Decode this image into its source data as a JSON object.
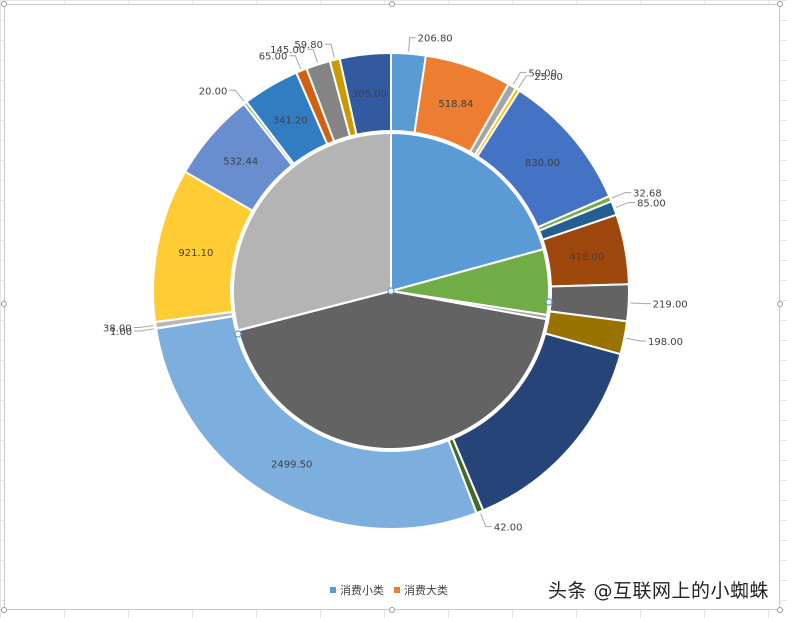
{
  "chart_data": {
    "type": "doughnut-pie",
    "legend": [
      {
        "name": "消费小类",
        "color": "#5b9bd5"
      },
      {
        "name": "消费大类",
        "color": "#ed7d31"
      }
    ],
    "legend_position": "bottom",
    "series": [
      {
        "name": "消费小类",
        "ring": "outer",
        "values": [
          206.8,
          518.84,
          50.0,
          25.0,
          830.0,
          32.68,
          85.0,
          418.0,
          219.0,
          198.0,
          1270.0,
          42.0,
          2499.5,
          1.0,
          38.0,
          921.1,
          532.44,
          20.0,
          341.2,
          65.0,
          145.0,
          59.8,
          305.0
        ],
        "labels": [
          "206.80",
          "518.84",
          "50.00",
          "25.00",
          "830.00",
          "32.68",
          "85.00",
          "418.00",
          "219.00",
          "198.00",
          "",
          "42.00",
          "2499.50",
          "1.00",
          "38.00",
          "921.10",
          "532.44",
          "20.00",
          "341.20",
          "65.00",
          "145.00",
          "59.80",
          "305.00"
        ],
        "colors": [
          "#5b9bd5",
          "#ed7d31",
          "#a5a5a5",
          "#ffc000",
          "#4472c4",
          "#70ad47",
          "#255e91",
          "#9e480e",
          "#636363",
          "#997300",
          "#264478",
          "#43682b",
          "#7cafdd",
          "#f1975a",
          "#b7b7b7",
          "#ffcd33",
          "#698ed0",
          "#8cc168",
          "#327dc2",
          "#d26012",
          "#848484",
          "#cc9a00",
          "#335aa1"
        ]
      },
      {
        "name": "消费大类",
        "ring": "inner",
        "values": [
          1663.32,
          535.68,
          35.0,
          3456.5,
          2.0,
          2325.34
        ],
        "colors": [
          "#5b9bd5",
          "#70ad47",
          "#a5a5a5",
          "#636363",
          "#5b9bd5",
          "#b4b4b4"
        ]
      }
    ]
  },
  "watermark": "头条 @互联网上的小蜘蛛"
}
